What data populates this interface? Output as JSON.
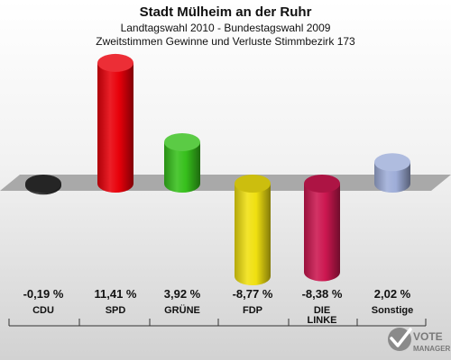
{
  "chart_data": {
    "type": "bar",
    "title": "Stadt Mülheim an der Ruhr",
    "subtitle_1": "Landtagswahl 2010 - Bundestagswahl 2009",
    "subtitle_2": "Zweitstimmen Gewinne und Verluste Stimmbezirk 173",
    "categories": [
      "CDU",
      "SPD",
      "GRÜNE",
      "FDP",
      "DIE LINKE",
      "Sonstige"
    ],
    "values": [
      -0.19,
      11.41,
      3.92,
      -8.77,
      -8.38,
      2.02
    ],
    "value_labels": [
      "-0,19 %",
      "11,41 %",
      "3,92 %",
      "-8,77 %",
      "-8,38 %",
      "2,02 %"
    ],
    "colors": [
      "#2b2b2b",
      "#e8000a",
      "#37c01c",
      "#f0e010",
      "#cc1750",
      "#9eadd8"
    ],
    "ylim": [
      -10,
      12
    ],
    "grid": false
  },
  "logo": {
    "line1": "VOTE",
    "line2": "MANAGER"
  }
}
